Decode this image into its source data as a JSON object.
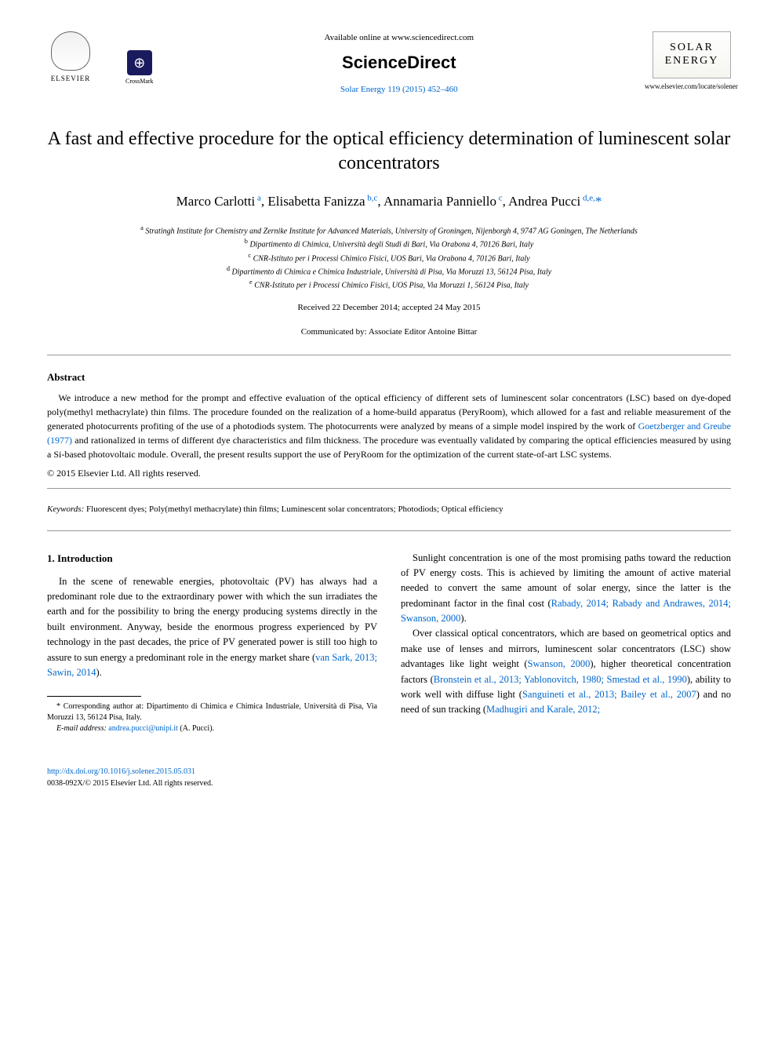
{
  "header": {
    "elsevier_label": "ELSEVIER",
    "crossmark_label": "CrossMark",
    "crossmark_glyph": "⊕",
    "available_text": "Available online at www.sciencedirect.com",
    "sciencedirect": "ScienceDirect",
    "journal_ref": "Solar Energy 119 (2015) 452–460",
    "journal_name_line1": "SOLAR",
    "journal_name_line2": "ENERGY",
    "locate_url": "www.elsevier.com/locate/solener"
  },
  "title": "A fast and effective procedure for the optical efficiency determination of luminescent solar concentrators",
  "authors_html": "Marco Carlotti<sup> a</sup>, Elisabetta Fanizza<sup> b,c</sup>, Annamaria Panniello<sup> c</sup>, Andrea Pucci<sup> d,e,</sup><span class='corr'>*</span>",
  "affiliations": [
    "<sup>a</sup> Stratingh Institute for Chemistry and Zernike Institute for Advanced Materials, University of Groningen, Nijenborgh 4, 9747 AG Goningen, The Netherlands",
    "<sup>b</sup> Dipartimento di Chimica, Università degli Studi di Bari, Via Orabona 4, 70126 Bari, Italy",
    "<sup>c</sup> CNR-Istituto per i Processi Chimico Fisici, UOS Bari, Via Orabona 4, 70126 Bari, Italy",
    "<sup>d</sup> Dipartimento di Chimica e Chimica Industriale, Università di Pisa, Via Moruzzi 13, 56124 Pisa, Italy",
    "<sup>e</sup> CNR-Istituto per i Processi Chimico Fisici, UOS Pisa, Via Moruzzi 1, 56124 Pisa, Italy"
  ],
  "dates": "Received 22 December 2014; accepted 24 May 2015",
  "communicated": "Communicated by: Associate Editor Antoine Bittar",
  "abstract": {
    "heading": "Abstract",
    "text": "We introduce a new method for the prompt and effective evaluation of the optical efficiency of different sets of luminescent solar concentrators (LSC) based on dye-doped poly(methyl methacrylate) thin films. The procedure founded on the realization of a home-build apparatus (PeryRoom), which allowed for a fast and reliable measurement of the generated photocurrents profiting of the use of a photodiods system. The photocurrents were analyzed by means of a simple model inspired by the work of <span class='link'>Goetzberger and Greube (1977)</span> and rationalized in terms of different dye characteristics and film thickness. The procedure was eventually validated by comparing the optical efficiencies measured by using a Si-based photovoltaic module. Overall, the present results support the use of PeryRoom for the optimization of the current state-of-art LSC systems.",
    "copyright": "© 2015 Elsevier Ltd. All rights reserved."
  },
  "keywords": {
    "label": "Keywords:",
    "text": " Fluorescent dyes; Poly(methyl methacrylate) thin films; Luminescent solar concentrators; Photodiods; Optical efficiency"
  },
  "body": {
    "section_heading": "1. Introduction",
    "col1_p1": "In the scene of renewable energies, photovoltaic (PV) has always had a predominant role due to the extraordinary power with which the sun irradiates the earth and for the possibility to bring the energy producing systems directly in the built environment. Anyway, beside the enormous progress experienced by PV technology in the past decades, the price of PV generated power is still too high to assure to sun energy a predominant role in the energy market share (<span class='link'>van Sark, 2013; Sawin, 2014</span>).",
    "col2_p1": "Sunlight concentration is one of the most promising paths toward the reduction of PV energy costs. This is achieved by limiting the amount of active material needed to convert the same amount of solar energy, since the latter is the predominant factor in the final cost (<span class='link'>Rabady, 2014; Rabady and Andrawes, 2014; Swanson, 2000</span>).",
    "col2_p2": "Over classical optical concentrators, which are based on geometrical optics and make use of lenses and mirrors, luminescent solar concentrators (LSC) show advantages like light weight (<span class='link'>Swanson, 2000</span>), higher theoretical concentration factors (<span class='link'>Bronstein et al., 2013; Yablonovitch, 1980; Smestad et al., 1990</span>), ability to work well with diffuse light (<span class='link'>Sanguineti et al., 2013; Bailey et al., 2007</span>) and no need of sun tracking (<span class='link'>Madhugiri and Karale, 2012;</span>"
  },
  "footnote": {
    "corr": "* Corresponding author at: Dipartimento di Chimica e Chimica Industriale, Università di Pisa, Via Moruzzi 13, 56124 Pisa, Italy.",
    "email_label": "E-mail address:",
    "email": "andrea.pucci@unipi.it",
    "email_suffix": " (A. Pucci)."
  },
  "doi": {
    "url": "http://dx.doi.org/10.1016/j.solener.2015.05.031",
    "issn": "0038-092X/© 2015 Elsevier Ltd. All rights reserved."
  },
  "colors": {
    "link": "#0066cc",
    "text": "#000000",
    "crossmark_bg": "#1a1a5e"
  }
}
